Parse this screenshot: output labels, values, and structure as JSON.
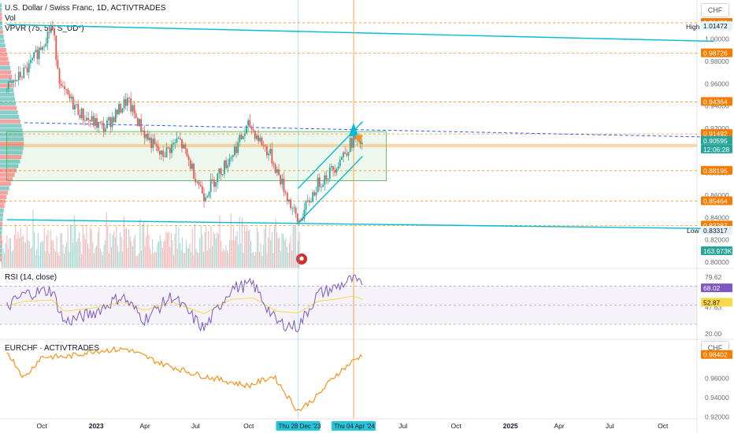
{
  "legend": {
    "main_title": "U.S. Dollar / Swiss Franc, 1D, ACTIVTRADES",
    "vol": "Vol",
    "vpvr": "VPVR (75, 50, S_UD*)",
    "rsi": "RSI (14, close)",
    "eurchf": "EURCHF · ACTIVTRADES",
    "currency": "CHF"
  },
  "colors": {
    "up": "#26a69a",
    "down": "#ef5350",
    "teal": "#00bcd4",
    "orange": "#f7931a",
    "blue_line": "#2962ff",
    "purple": "#7e57c2",
    "yellow": "#f9d949",
    "grid": "#f0f3fa",
    "price_tag": "#26a69a",
    "label_orange": "#f57c00"
  },
  "chart_data": [
    {
      "type": "candlestick",
      "title": "U.S. Dollar / Swiss Franc, 1D, ACTIVTRADES",
      "ylim": [
        0.8,
        1.03
      ],
      "y_ticks": [
        0.8,
        0.82,
        0.84,
        0.86,
        0.88,
        0.9,
        0.92,
        0.94,
        0.96,
        0.98,
        1.0
      ],
      "x_range": [
        "2022-08-01",
        "2025-12-31"
      ],
      "x_ticks": [
        {
          "d": "2022-10-01",
          "label": "Oct"
        },
        {
          "d": "2023-01-01",
          "label": "2023"
        },
        {
          "d": "2023-04-01",
          "label": "Apr"
        },
        {
          "d": "2023-07-01",
          "label": "Jul"
        },
        {
          "d": "2023-10-01",
          "label": "Oct"
        },
        {
          "d": "2024-07-01",
          "label": "Jul"
        },
        {
          "d": "2024-10-01",
          "label": "Oct"
        },
        {
          "d": "2025-01-01",
          "label": "2025"
        },
        {
          "d": "2025-04-01",
          "label": "Apr"
        },
        {
          "d": "2025-07-01",
          "label": "Jul"
        },
        {
          "d": "2025-10-01",
          "label": "Oct"
        }
      ],
      "x_markers": [
        {
          "d": "2023-12-28",
          "label": "Thu 28 Dec '23"
        },
        {
          "d": "2024-04-04",
          "label": "Thu 04 Apr '24"
        }
      ],
      "close_series": [
        [
          "2022-08-01",
          0.955
        ],
        [
          "2022-09-10",
          0.975
        ],
        [
          "2022-10-20",
          1.012
        ],
        [
          "2022-11-05",
          0.955
        ],
        [
          "2022-12-15",
          0.93
        ],
        [
          "2023-01-20",
          0.92
        ],
        [
          "2023-03-01",
          0.945
        ],
        [
          "2023-04-01",
          0.915
        ],
        [
          "2023-05-01",
          0.895
        ],
        [
          "2023-06-01",
          0.91
        ],
        [
          "2023-07-15",
          0.86
        ],
        [
          "2023-08-25",
          0.89
        ],
        [
          "2023-10-03",
          0.923
        ],
        [
          "2023-11-10",
          0.895
        ],
        [
          "2023-12-28",
          0.835
        ],
        [
          "2024-02-01",
          0.87
        ],
        [
          "2024-03-01",
          0.885
        ],
        [
          "2024-04-04",
          0.91
        ],
        [
          "2024-04-20",
          0.906
        ]
      ],
      "levels": [
        {
          "y": 1.01456,
          "label": "1.01456",
          "style": "orange"
        },
        {
          "y": 0.98726,
          "label": "0.98726",
          "style": "orange"
        },
        {
          "y": 0.94364,
          "label": "0.94364",
          "style": "orange"
        },
        {
          "y": 0.91492,
          "label": "0.91492",
          "style": "orange"
        },
        {
          "y": 0.88195,
          "label": "0.88195",
          "style": "orange"
        },
        {
          "y": 0.85464,
          "label": "0.85464",
          "style": "orange"
        },
        {
          "y": 0.83287,
          "label": "0.83287",
          "style": "orange"
        }
      ],
      "axis_tags": {
        "high_label": "High",
        "high_value": "1.01472",
        "low_label": "Low",
        "low_value": "0.83317",
        "last_price": "0.90595",
        "countdown": "12:06:28",
        "volume": "163.973K"
      },
      "upper_trendline": [
        [
          "2022-08-01",
          1.013
        ],
        [
          "2025-12-31",
          0.998
        ]
      ],
      "lower_trendline": [
        [
          "2022-08-01",
          0.838
        ],
        [
          "2025-12-31",
          0.83
        ]
      ],
      "dashed_trendline": [
        [
          "2022-09-01",
          0.925
        ],
        [
          "2025-12-31",
          0.912
        ]
      ],
      "channel_upper": [
        [
          "2023-12-28",
          0.866
        ],
        [
          "2024-04-20",
          0.926
        ]
      ],
      "channel_lower": [
        [
          "2023-12-28",
          0.835
        ],
        [
          "2024-04-20",
          0.895
        ]
      ],
      "zone": {
        "x0": "2022-08-01",
        "x1": "2024-04-20",
        "y0": 0.873,
        "y1": 0.917
      },
      "poc_band": {
        "y0": 0.903,
        "y1": 0.906
      }
    },
    {
      "type": "line",
      "title": "RSI (14, close)",
      "ylim": [
        20,
        85
      ],
      "y_ticks": [
        20.0,
        47.63,
        52.87,
        68.02,
        79.62
      ],
      "bands": {
        "upper": 70,
        "middle": 50,
        "lower": 30
      },
      "value_tags": {
        "rsi": "68.02",
        "signal": "52.87"
      },
      "series": [
        [
          "2022-08-01",
          48
        ],
        [
          "2022-09-01",
          62
        ],
        [
          "2022-10-20",
          66
        ],
        [
          "2022-11-10",
          32
        ],
        [
          "2023-01-01",
          42
        ],
        [
          "2023-02-20",
          60
        ],
        [
          "2023-04-01",
          35
        ],
        [
          "2023-05-20",
          60
        ],
        [
          "2023-07-15",
          25
        ],
        [
          "2023-09-01",
          68
        ],
        [
          "2023-10-10",
          72
        ],
        [
          "2023-11-20",
          32
        ],
        [
          "2023-12-28",
          27
        ],
        [
          "2024-02-01",
          62
        ],
        [
          "2024-03-01",
          68
        ],
        [
          "2024-04-04",
          78
        ],
        [
          "2024-04-20",
          68
        ]
      ]
    },
    {
      "type": "line",
      "title": "EURCHF · ACTIVTRADES",
      "ylim": [
        0.92,
        1.0
      ],
      "y_ticks": [
        0.92,
        0.94,
        0.96
      ],
      "last_value": "0.98402",
      "series": [
        [
          "2022-08-01",
          0.988
        ],
        [
          "2022-09-01",
          0.96
        ],
        [
          "2022-10-01",
          0.982
        ],
        [
          "2022-11-15",
          0.982
        ],
        [
          "2023-01-01",
          0.988
        ],
        [
          "2023-03-01",
          0.99
        ],
        [
          "2023-05-01",
          0.975
        ],
        [
          "2023-07-01",
          0.964
        ],
        [
          "2023-08-15",
          0.958
        ],
        [
          "2023-10-01",
          0.952
        ],
        [
          "2023-11-15",
          0.962
        ],
        [
          "2023-12-28",
          0.926
        ],
        [
          "2024-02-01",
          0.942
        ],
        [
          "2024-03-01",
          0.962
        ],
        [
          "2024-04-04",
          0.978
        ],
        [
          "2024-04-20",
          0.984
        ]
      ]
    }
  ]
}
